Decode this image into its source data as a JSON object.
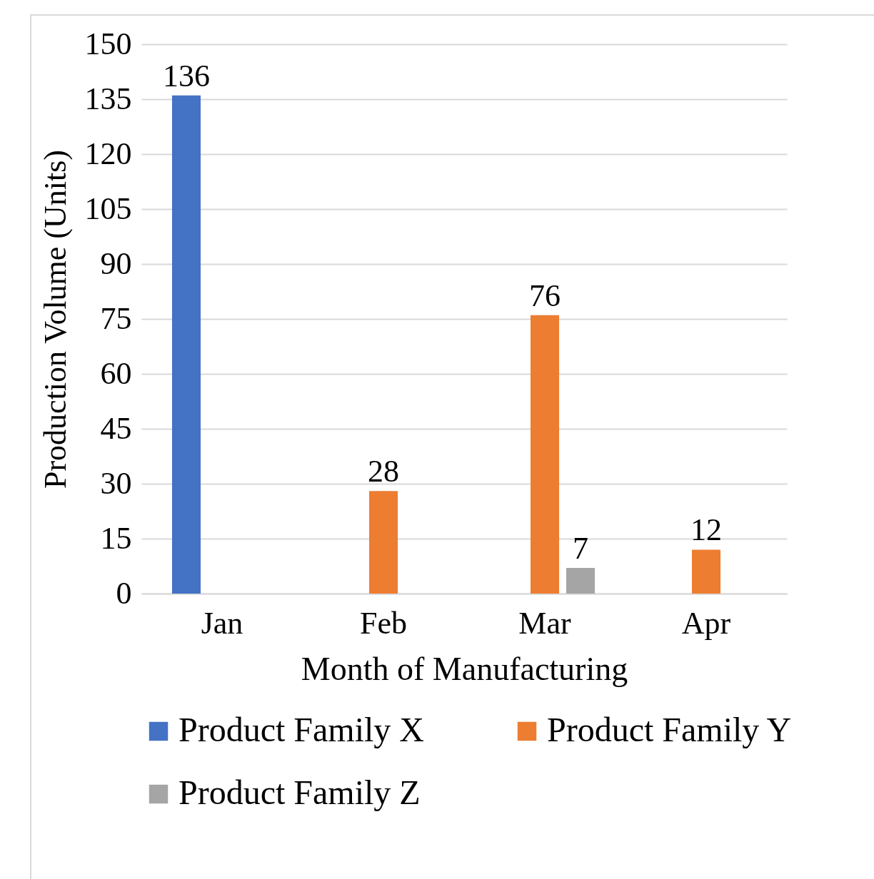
{
  "chart_data": {
    "type": "bar",
    "xlabel": "Month of Manufacturing",
    "ylabel": "Production Volume (Units)",
    "categories": [
      "Jan",
      "Feb",
      "Mar",
      "Apr"
    ],
    "series": [
      {
        "name": "Product Family X",
        "color": "#4472c4",
        "values": [
          136,
          null,
          null,
          null
        ]
      },
      {
        "name": "Product Family Y",
        "color": "#ed7d31",
        "values": [
          null,
          28,
          76,
          12
        ]
      },
      {
        "name": "Product Family Z",
        "color": "#a5a5a5",
        "values": [
          null,
          null,
          7,
          null
        ]
      }
    ],
    "ylim": [
      0,
      150
    ],
    "yticks": [
      0,
      15,
      30,
      45,
      60,
      75,
      90,
      105,
      120,
      135,
      150
    ],
    "grid": "y",
    "legend": "bottom",
    "data_labels": true
  }
}
